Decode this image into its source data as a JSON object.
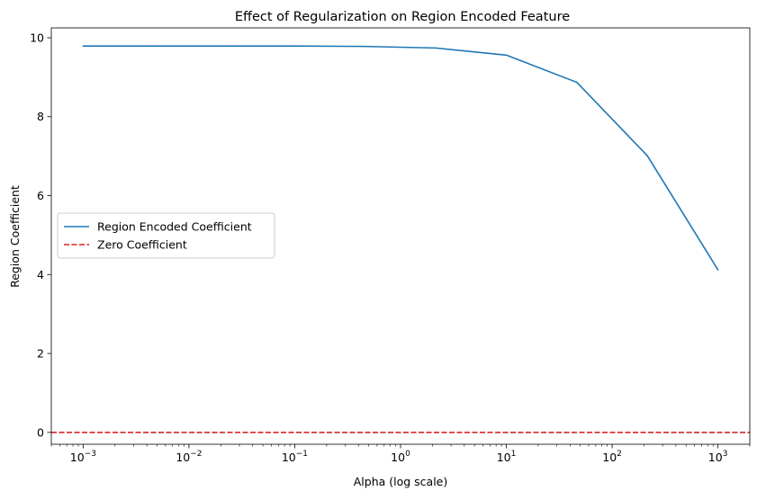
{
  "chart_data": {
    "type": "line",
    "title": "Effect of Regularization on Region Encoded Feature",
    "xlabel": "Alpha (log scale)",
    "ylabel": "Region Coefficient",
    "xscale": "log",
    "xlim": [
      0.0005,
      2000
    ],
    "ylim": [
      -0.3,
      10.25
    ],
    "x_ticks": [
      {
        "value": 0.001,
        "base": "10",
        "exp": "−3"
      },
      {
        "value": 0.01,
        "base": "10",
        "exp": "−2"
      },
      {
        "value": 0.1,
        "base": "10",
        "exp": "−1"
      },
      {
        "value": 1,
        "base": "10",
        "exp": "0"
      },
      {
        "value": 10,
        "base": "10",
        "exp": "1"
      },
      {
        "value": 100,
        "base": "10",
        "exp": "2"
      },
      {
        "value": 1000,
        "base": "10",
        "exp": "3"
      }
    ],
    "y_ticks": [
      {
        "value": 0,
        "label": "0"
      },
      {
        "value": 2,
        "label": "2"
      },
      {
        "value": 4,
        "label": "4"
      },
      {
        "value": 6,
        "label": "6"
      },
      {
        "value": 8,
        "label": "8"
      },
      {
        "value": 10,
        "label": "10"
      }
    ],
    "grid": false,
    "legend_position": "center-left",
    "series": [
      {
        "name": "Region Encoded Coefficient",
        "color": "#1f77b4",
        "style": "solid",
        "x": [
          0.001,
          0.0046,
          0.0215,
          0.1,
          0.464,
          2.15,
          10,
          46.4,
          215,
          1000
        ],
        "y": [
          9.79,
          9.79,
          9.79,
          9.79,
          9.78,
          9.74,
          9.56,
          8.87,
          7.01,
          4.12
        ]
      }
    ],
    "reference_lines": [
      {
        "name": "Zero Coefficient",
        "orientation": "horizontal",
        "value": 0,
        "color": "#d62728",
        "style": "dashed"
      }
    ]
  }
}
